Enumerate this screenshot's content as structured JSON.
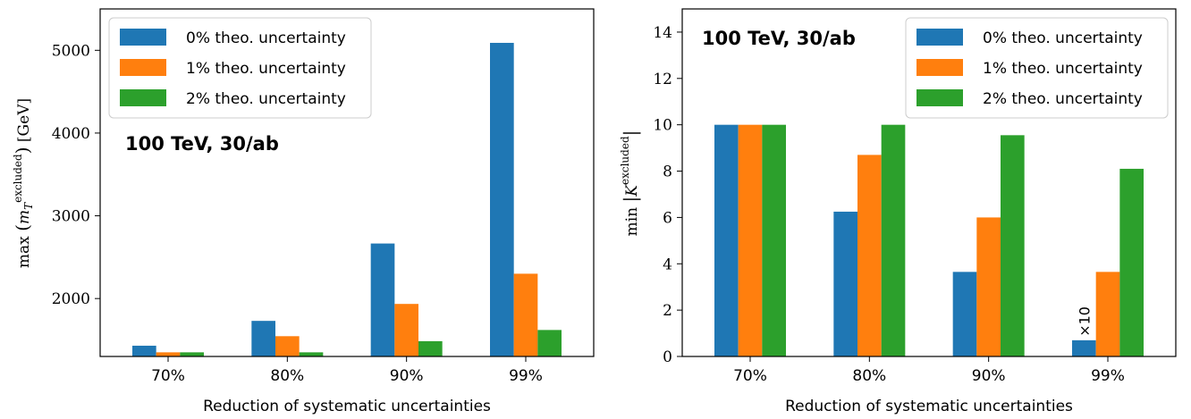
{
  "chart_data": [
    {
      "type": "bar",
      "categories": [
        "70%",
        "80%",
        "90%",
        "99%"
      ],
      "series": [
        {
          "name": "0% theo. uncertainty",
          "values": [
            1430,
            1730,
            2665,
            5090
          ]
        },
        {
          "name": "1% theo. uncertainty",
          "values": [
            1350,
            1545,
            1935,
            2300
          ]
        },
        {
          "name": "2% theo. uncertainty",
          "values": [
            1350,
            1350,
            1485,
            1620
          ]
        }
      ],
      "xlabel": "Reduction of systematic uncertainties",
      "ylabel": "max (m_T^excluded) [GeV]",
      "ylim": [
        1300,
        5500
      ],
      "yticks": [
        "2000",
        "3000",
        "4000",
        "5000"
      ],
      "annotation": "100 TeV, 30/ab",
      "legend_position": "top-left",
      "grid": false
    },
    {
      "type": "bar",
      "categories": [
        "70%",
        "80%",
        "90%",
        "99%"
      ],
      "series": [
        {
          "name": "0% theo. uncertainty",
          "values": [
            10,
            6.25,
            3.65,
            0.7
          ]
        },
        {
          "name": "1% theo. uncertainty",
          "values": [
            10,
            8.7,
            6.0,
            3.65
          ]
        },
        {
          "name": "2% theo. uncertainty",
          "values": [
            10,
            10,
            9.55,
            8.1
          ]
        }
      ],
      "xlabel": "Reduction of systematic uncertainties",
      "ylabel": "min |K^excluded|",
      "ylim": [
        0,
        15
      ],
      "yticks": [
        "0",
        "2",
        "4",
        "6",
        "8",
        "10",
        "12",
        "14"
      ],
      "annotation": "100 TeV, 30/ab",
      "bar_annotation": "×10",
      "legend_position": "top-right",
      "grid": false
    }
  ],
  "colors": {
    "series": [
      "#1f77b4",
      "#ff7f0e",
      "#2ca02c"
    ],
    "axis": "#000000",
    "legend_border": "#cccccc"
  }
}
